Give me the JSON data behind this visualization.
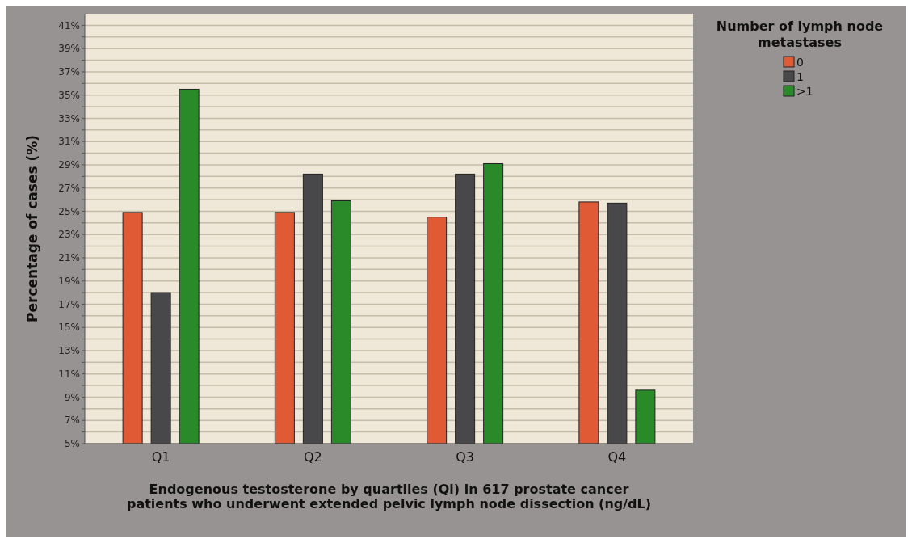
{
  "chart_data": {
    "type": "bar",
    "xlabel": "Endogenous testosterone by quartiles (Qi) in 617 prostate cancer patients who underwent extended pelvic lymph node dissection (ng/dL)",
    "ylabel": "Percentage of cases (%)",
    "legend_title": "Number of lymph node metastases",
    "categories": [
      "Q1",
      "Q2",
      "Q3",
      "Q4"
    ],
    "series": [
      {
        "name": "0",
        "color": "#e05a35",
        "values": [
          24.9,
          24.9,
          24.5,
          25.8
        ]
      },
      {
        "name": "1",
        "color": "#48484a",
        "values": [
          18.0,
          28.2,
          28.2,
          25.7
        ]
      },
      {
        "name": ">1",
        "color": "#2a8a2a",
        "values": [
          35.5,
          25.9,
          29.1,
          9.6
        ]
      }
    ],
    "ylim": [
      5,
      42
    ],
    "yticks": [
      {
        "value": 5,
        "label": "5%"
      },
      {
        "value": 6,
        "label": null
      },
      {
        "value": 7,
        "label": "7%"
      },
      {
        "value": 8,
        "label": null
      },
      {
        "value": 9,
        "label": "9%"
      },
      {
        "value": 10,
        "label": null
      },
      {
        "value": 11,
        "label": "11%"
      },
      {
        "value": 12,
        "label": null
      },
      {
        "value": 13,
        "label": "13%"
      },
      {
        "value": 14,
        "label": null
      },
      {
        "value": 15,
        "label": "15%"
      },
      {
        "value": 16,
        "label": null
      },
      {
        "value": 17,
        "label": "17%"
      },
      {
        "value": 18,
        "label": null
      },
      {
        "value": 19,
        "label": "19%"
      },
      {
        "value": 20,
        "label": null
      },
      {
        "value": 21,
        "label": "21%"
      },
      {
        "value": 22,
        "label": null
      },
      {
        "value": 23,
        "label": "23%"
      },
      {
        "value": 24,
        "label": null
      },
      {
        "value": 25,
        "label": "25%"
      },
      {
        "value": 26,
        "label": null
      },
      {
        "value": 27,
        "label": "27%"
      },
      {
        "value": 28,
        "label": null
      },
      {
        "value": 29,
        "label": "29%"
      },
      {
        "value": 30,
        "label": null
      },
      {
        "value": 31,
        "label": "31%"
      },
      {
        "value": 32,
        "label": null
      },
      {
        "value": 33,
        "label": "33%"
      },
      {
        "value": 34,
        "label": null
      },
      {
        "value": 35,
        "label": "35%"
      },
      {
        "value": 36,
        "label": null
      },
      {
        "value": 37,
        "label": "37%"
      },
      {
        "value": 38,
        "label": null
      },
      {
        "value": 39,
        "label": "39%"
      },
      {
        "value": 40,
        "label": null
      },
      {
        "value": 41,
        "label": "41%"
      }
    ],
    "grid": "y",
    "legend": "top right"
  }
}
